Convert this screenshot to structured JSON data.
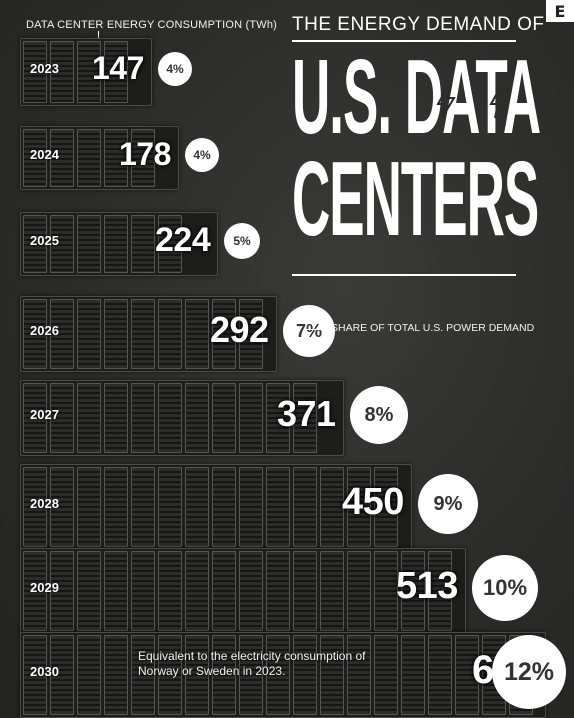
{
  "logo": {
    "letter": "E"
  },
  "header": {
    "subtitle": "DATA CENTER ENERGY CONSUMPTION (TWh)",
    "title_line1": "THE ENERGY DEMAND OF",
    "title_line2": "U.S. DATA",
    "title_line3": "CENTERS",
    "bolt_icon": "lightning-bolt-icon"
  },
  "annotations": {
    "share_label": "SHARE OF TOTAL U.S. POWER DEMAND",
    "note": "Equivalent to the electricity consumption of Norway or Sweden in 2023."
  },
  "colors": {
    "background": "#2b2b2a",
    "text": "#ffffff",
    "pct_circle": "#ffffff",
    "pct_text": "#333333"
  },
  "chart_data": {
    "type": "bar",
    "title": "THE ENERGY DEMAND OF U.S. DATA CENTERS",
    "subtitle": "DATA CENTER ENERGY CONSUMPTION (TWh)",
    "categories": [
      "2023",
      "2024",
      "2025",
      "2026",
      "2027",
      "2028",
      "2029",
      "2030"
    ],
    "series": [
      {
        "name": "Data center energy consumption (TWh)",
        "values": [
          147,
          178,
          224,
          292,
          371,
          450,
          513,
          606
        ]
      },
      {
        "name": "SHARE OF TOTAL U.S. POWER DEMAND",
        "values": [
          "4%",
          "4%",
          "5%",
          "7%",
          "8%",
          "9%",
          "10%",
          "12%"
        ]
      }
    ],
    "orientation": "horizontal"
  }
}
